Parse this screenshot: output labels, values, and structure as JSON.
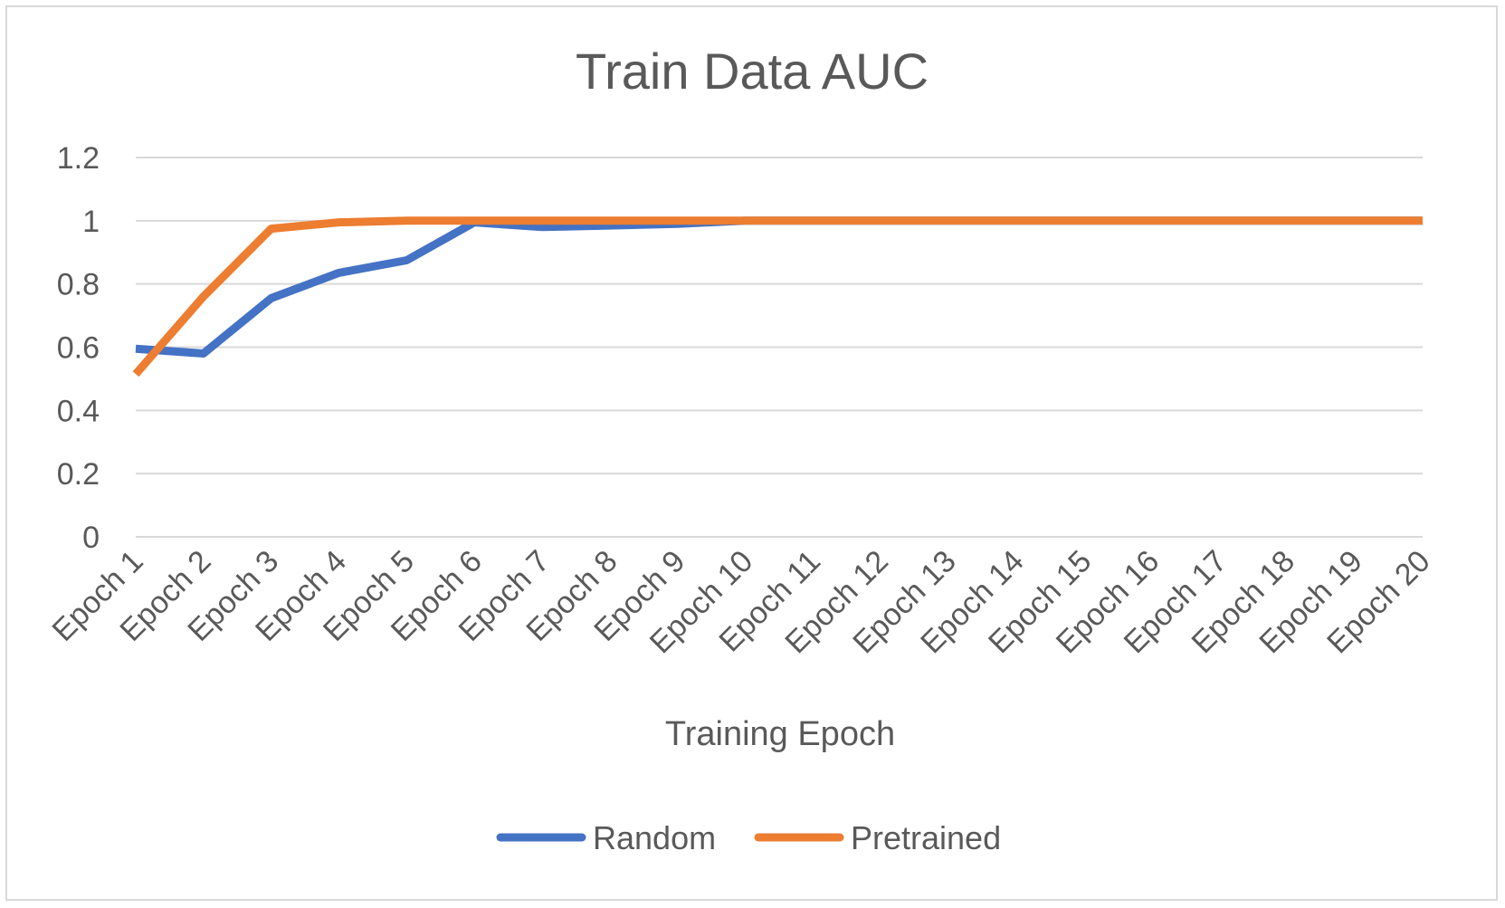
{
  "chart_data": {
    "type": "line",
    "title": "Train Data AUC",
    "xlabel": "Training Epoch",
    "ylabel": "",
    "categories": [
      "Epoch 1",
      "Epoch 2",
      "Epoch 3",
      "Epoch 4",
      "Epoch 5",
      "Epoch 6",
      "Epoch 7",
      "Epoch 8",
      "Epoch 9",
      "Epoch 10",
      "Epoch 11",
      "Epoch 12",
      "Epoch 13",
      "Epoch 14",
      "Epoch 15",
      "Epoch 16",
      "Epoch 17",
      "Epoch 18",
      "Epoch 19",
      "Epoch 20"
    ],
    "ylim": [
      0,
      1.2
    ],
    "yticks": [
      "0",
      "0.2",
      "0.4",
      "0.6",
      "0.8",
      "1",
      "1.2"
    ],
    "grid": true,
    "legend_position": "bottom",
    "series": [
      {
        "name": "Random",
        "color": "#4472c4",
        "values": [
          0.595,
          0.58,
          0.755,
          0.835,
          0.875,
          0.995,
          0.98,
          0.985,
          0.99,
          1.0,
          1.0,
          1.0,
          1.0,
          1.0,
          1.0,
          1.0,
          1.0,
          1.0,
          1.0,
          1.0
        ]
      },
      {
        "name": "Pretrained",
        "color": "#ed7d31",
        "values": [
          0.515,
          0.76,
          0.975,
          0.995,
          1.0,
          1.0,
          1.0,
          1.0,
          1.0,
          1.0,
          1.0,
          1.0,
          1.0,
          1.0,
          1.0,
          1.0,
          1.0,
          1.0,
          1.0,
          1.0
        ]
      }
    ]
  }
}
